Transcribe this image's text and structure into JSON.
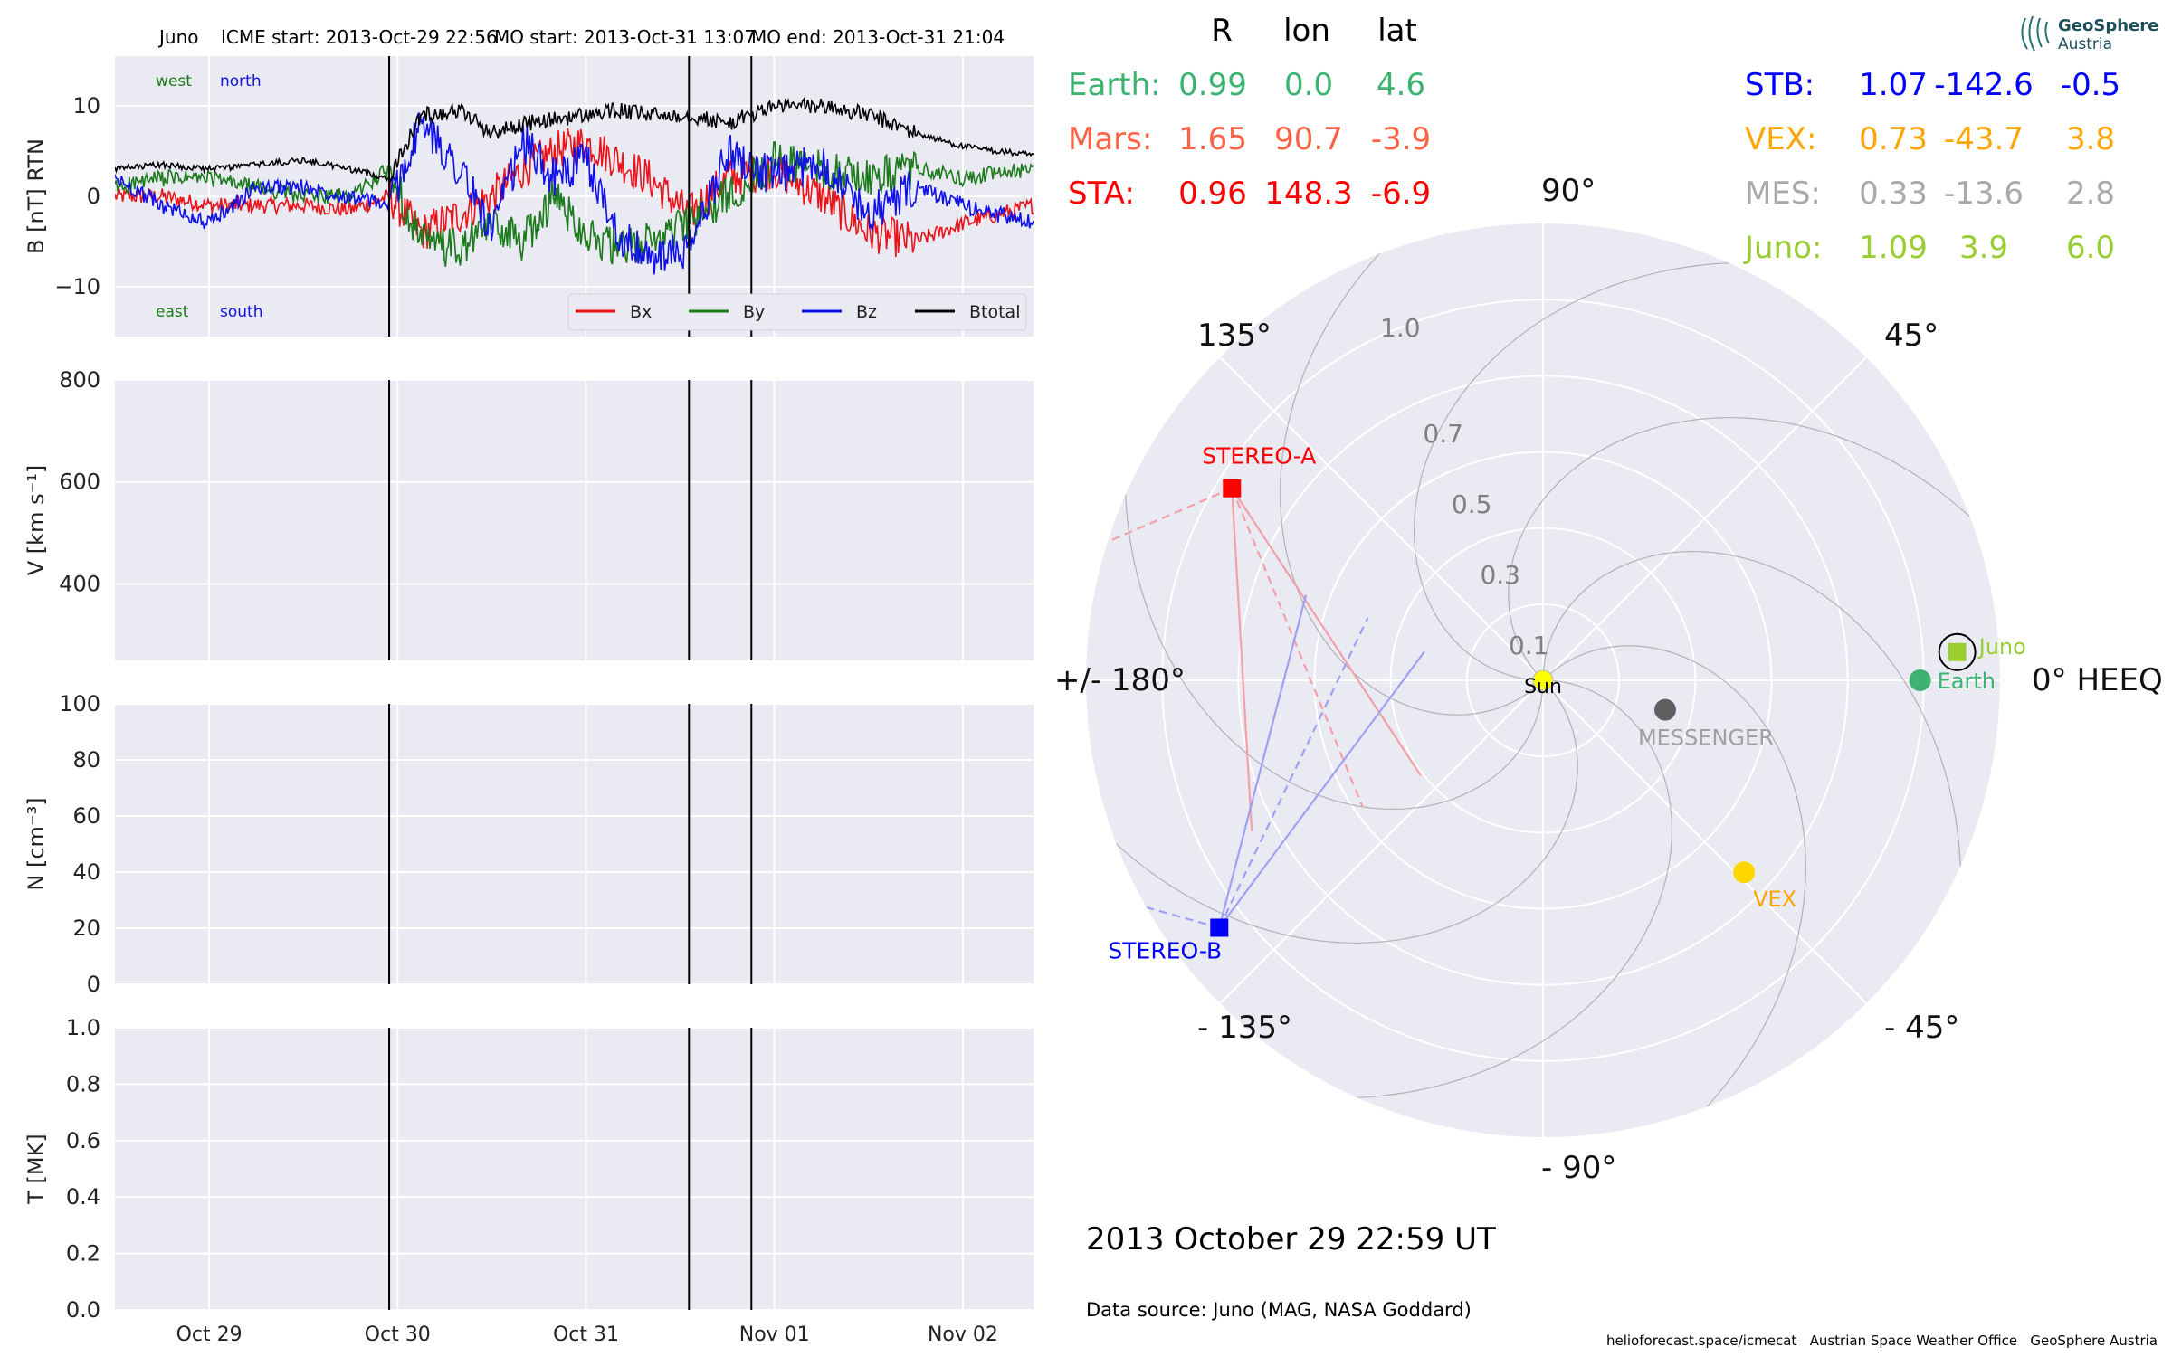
{
  "header": {
    "spacecraft": "Juno",
    "icme_start": "ICME start: 2013-Oct-29 22:56",
    "mo_start": "MO start: 2013-Oct-31 13:07",
    "mo_end": "MO end: 2013-Oct-31 21:04"
  },
  "chart_data": [
    {
      "type": "line",
      "panel": "magnetic-field",
      "ylabel": "B [nT] RTN",
      "ylim": [
        -15.5,
        15.5
      ],
      "yticks": [
        10,
        0,
        -10
      ],
      "ytick_labels": [
        "10",
        "0",
        "−10"
      ],
      "xlim_days": [
        "2013-10-28 12:00",
        "2013-11-02 09:00"
      ],
      "corner_labels": {
        "west": "west",
        "north": "north",
        "east": "east",
        "south": "south"
      },
      "legend": [
        "Bx",
        "By",
        "Bz",
        "Btotal"
      ],
      "legend_position": "lower-right",
      "event_lines": [
        "2013-10-29 22:56",
        "2013-10-31 13:07",
        "2013-10-31 21:04"
      ],
      "series": [
        {
          "name": "Bx",
          "color": "#e8141a",
          "x": [
            "2013-10-28 12:00",
            "2013-10-28 18:00",
            "2013-10-29 00:00",
            "2013-10-29 06:00",
            "2013-10-29 12:00",
            "2013-10-29 18:00",
            "2013-10-29 22:56",
            "2013-10-30 03:00",
            "2013-10-30 08:00",
            "2013-10-30 12:00",
            "2013-10-30 16:00",
            "2013-10-30 20:00",
            "2013-10-31 00:00",
            "2013-10-31 04:00",
            "2013-10-31 08:00",
            "2013-10-31 13:07",
            "2013-10-31 18:00",
            "2013-11-01 00:00",
            "2013-11-01 06:00",
            "2013-11-01 12:00",
            "2013-11-01 18:00",
            "2013-11-02 00:00",
            "2013-11-02 09:00"
          ],
          "y": [
            0,
            0,
            -1,
            -1,
            -1,
            -1.5,
            0,
            -4,
            -2,
            0,
            3,
            5,
            6,
            4,
            2,
            -2,
            2,
            3,
            0,
            -4,
            -5,
            -3,
            -1
          ]
        },
        {
          "name": "By",
          "color": "#1b7a1b",
          "x": [
            "2013-10-28 12:00",
            "2013-10-28 18:00",
            "2013-10-29 00:00",
            "2013-10-29 06:00",
            "2013-10-29 12:00",
            "2013-10-29 18:00",
            "2013-10-29 22:56",
            "2013-10-30 03:00",
            "2013-10-30 08:00",
            "2013-10-30 12:00",
            "2013-10-30 16:00",
            "2013-10-30 20:00",
            "2013-10-31 00:00",
            "2013-10-31 04:00",
            "2013-10-31 08:00",
            "2013-10-31 13:07",
            "2013-10-31 18:00",
            "2013-11-01 00:00",
            "2013-11-01 06:00",
            "2013-11-01 12:00",
            "2013-11-01 18:00",
            "2013-11-02 00:00",
            "2013-11-02 09:00"
          ],
          "y": [
            1,
            2,
            2,
            1,
            0,
            0,
            3,
            -5,
            -6,
            -3,
            -5,
            0,
            -4,
            -6,
            -5,
            -3,
            0,
            4,
            3,
            2,
            3,
            2,
            3
          ]
        },
        {
          "name": "Bz",
          "color": "#1010e8",
          "x": [
            "2013-10-28 12:00",
            "2013-10-28 18:00",
            "2013-10-29 00:00",
            "2013-10-29 06:00",
            "2013-10-29 12:00",
            "2013-10-29 18:00",
            "2013-10-29 22:56",
            "2013-10-30 03:00",
            "2013-10-30 08:00",
            "2013-10-30 12:00",
            "2013-10-30 16:00",
            "2013-10-30 20:00",
            "2013-10-31 00:00",
            "2013-10-31 04:00",
            "2013-10-31 08:00",
            "2013-10-31 13:07",
            "2013-10-31 18:00",
            "2013-11-01 00:00",
            "2013-11-01 06:00",
            "2013-11-01 12:00",
            "2013-11-01 18:00",
            "2013-11-02 00:00",
            "2013-11-02 09:00"
          ],
          "y": [
            2,
            -1,
            -3,
            1,
            1,
            0,
            -1,
            8,
            3,
            -4,
            6,
            2,
            4,
            -4,
            -7,
            -6,
            5,
            2,
            4,
            -2,
            1,
            -1,
            -3
          ]
        },
        {
          "name": "Btotal",
          "color": "#000000",
          "x": [
            "2013-10-28 12:00",
            "2013-10-28 18:00",
            "2013-10-29 00:00",
            "2013-10-29 06:00",
            "2013-10-29 12:00",
            "2013-10-29 18:00",
            "2013-10-29 22:56",
            "2013-10-30 03:00",
            "2013-10-30 08:00",
            "2013-10-30 12:00",
            "2013-10-30 16:00",
            "2013-10-30 20:00",
            "2013-10-31 00:00",
            "2013-10-31 04:00",
            "2013-10-31 08:00",
            "2013-10-31 13:07",
            "2013-10-31 18:00",
            "2013-11-01 00:00",
            "2013-11-01 06:00",
            "2013-11-01 12:00",
            "2013-11-01 18:00",
            "2013-11-02 00:00",
            "2013-11-02 09:00"
          ],
          "y": [
            3,
            3.5,
            3,
            3.5,
            4,
            3,
            2,
            9,
            9.5,
            7,
            8,
            8.5,
            9,
            9.5,
            9,
            9,
            8,
            10,
            10,
            9,
            7,
            5.5,
            4.5
          ]
        }
      ]
    },
    {
      "type": "line",
      "panel": "velocity",
      "ylabel": "V [km s⁻¹]",
      "ylim": [
        250,
        800
      ],
      "yticks": [
        800,
        600,
        400
      ],
      "ytick_labels": [
        "800",
        "600",
        "400"
      ],
      "event_lines": [
        "2013-10-29 22:56",
        "2013-10-31 13:07",
        "2013-10-31 21:04"
      ],
      "series": []
    },
    {
      "type": "line",
      "panel": "density",
      "ylabel": "N [cm⁻³]",
      "ylim": [
        0,
        100
      ],
      "yticks": [
        100,
        80,
        60,
        40,
        20,
        0
      ],
      "ytick_labels": [
        "100",
        "80",
        "60",
        "40",
        "20",
        "0"
      ],
      "event_lines": [
        "2013-10-29 22:56",
        "2013-10-31 13:07",
        "2013-10-31 21:04"
      ],
      "series": []
    },
    {
      "type": "line",
      "panel": "temperature",
      "ylabel": "T [MK]",
      "ylim": [
        0,
        1
      ],
      "yticks": [
        1.0,
        0.8,
        0.6,
        0.4,
        0.2,
        0.0
      ],
      "ytick_labels": [
        "1.0",
        "0.8",
        "0.6",
        "0.4",
        "0.2",
        "0.0"
      ],
      "xtick_labels": [
        "Oct 29",
        "Oct 30",
        "Oct 31",
        "Nov 01",
        "Nov 02"
      ],
      "xticks": [
        "2013-10-29",
        "2013-10-30",
        "2013-10-31",
        "2013-11-01",
        "2013-11-02"
      ],
      "event_lines": [
        "2013-10-29 22:56",
        "2013-10-31 13:07",
        "2013-10-31 21:04"
      ],
      "series": []
    },
    {
      "type": "scatter",
      "panel": "polar-position",
      "projection": "polar",
      "rmax": 1.2,
      "radial_ticks": [
        0.1,
        0.3,
        0.5,
        0.7,
        1.0
      ],
      "radial_tick_labels": [
        "0.1",
        "0.3",
        "0.5",
        "0.7",
        "1.0"
      ],
      "angle_labels": {
        "a0": "0° HEEQ",
        "a45": "45°",
        "a90": "90°",
        "a135": "135°",
        "a180": "+/- 180°",
        "am135": "- 135°",
        "am90": "- 90°",
        "am45": "- 45°"
      },
      "bodies": [
        {
          "name": "Sun",
          "label": "Sun",
          "r": 0,
          "lon": 0,
          "color": "#ffff00",
          "marker": "circle",
          "label_color": "#000000"
        },
        {
          "name": "Earth",
          "label": "Earth",
          "r": 0.99,
          "lon": 0.0,
          "color": "#3cb371",
          "marker": "circle",
          "label_color": "#3cb371"
        },
        {
          "name": "Juno",
          "label": "Juno",
          "r": 1.09,
          "lon": 3.9,
          "color": "#9acd32",
          "marker": "square",
          "label_color": "#9acd32",
          "ring": true
        },
        {
          "name": "VEX",
          "label": "VEX",
          "r": 0.73,
          "lon": -43.7,
          "color": "#ffd700",
          "marker": "circle",
          "label_color": "#ffa500"
        },
        {
          "name": "MES",
          "label": "MESSENGER",
          "r": 0.33,
          "lon": -13.6,
          "color": "#606060",
          "marker": "circle",
          "label_color": "#a0a0a0"
        },
        {
          "name": "STA",
          "label": "STEREO-A",
          "r": 0.96,
          "lon": 148.3,
          "color": "#ff0000",
          "marker": "square",
          "label_color": "#ff0000"
        },
        {
          "name": "STB",
          "label": "STEREO-B",
          "r": 1.07,
          "lon": -142.6,
          "color": "#0000ff",
          "marker": "square",
          "label_color": "#0000ff"
        }
      ],
      "fov_lines": {
        "STA": {
          "color": "#f3a0a8",
          "solid_dirs": [
            -25,
            -55
          ],
          "dashed_dirs": [
            -36
          ],
          "outward_dashed_dir": 55
        },
        "STB": {
          "color": "#a0a0f3",
          "solid_dirs": [
            38,
            16
          ],
          "dashed_dirs": [
            27
          ],
          "outward_dashed_dir": -53
        }
      }
    }
  ],
  "positions_table": {
    "headers": {
      "r": "R",
      "lon": "lon",
      "lat": "lat"
    },
    "left": [
      {
        "name": "Earth:",
        "r": "0.99",
        "lon": "0.0",
        "lat": "4.6",
        "color": "#3cb371"
      },
      {
        "name": "Mars:",
        "r": "1.65",
        "lon": "90.7",
        "lat": "-3.9",
        "color": "#ff6347"
      },
      {
        "name": "STA:",
        "r": "0.96",
        "lon": "148.3",
        "lat": "-6.9",
        "color": "#ff0000"
      }
    ],
    "right": [
      {
        "name": "STB:",
        "r": "1.07",
        "lon": "-142.6",
        "lat": "-0.5",
        "color": "#0000ff"
      },
      {
        "name": "VEX:",
        "r": "0.73",
        "lon": "-43.7",
        "lat": "3.8",
        "color": "#ffa500"
      },
      {
        "name": "MES:",
        "r": "0.33",
        "lon": "-13.6",
        "lat": "2.8",
        "color": "#a9a9a9"
      },
      {
        "name": "Juno:",
        "r": "1.09",
        "lon": "3.9",
        "lat": "6.0",
        "color": "#9acd32"
      }
    ]
  },
  "footer": {
    "date": "2013 October 29  22:59 UT",
    "source": "Data source: Juno (MAG, NASA Goddard)",
    "credits": "helioforecast.space/icmecat   Austrian Space Weather Office   GeoSphere Austria",
    "logo_line1": "GeoSphere",
    "logo_line2": "Austria"
  }
}
